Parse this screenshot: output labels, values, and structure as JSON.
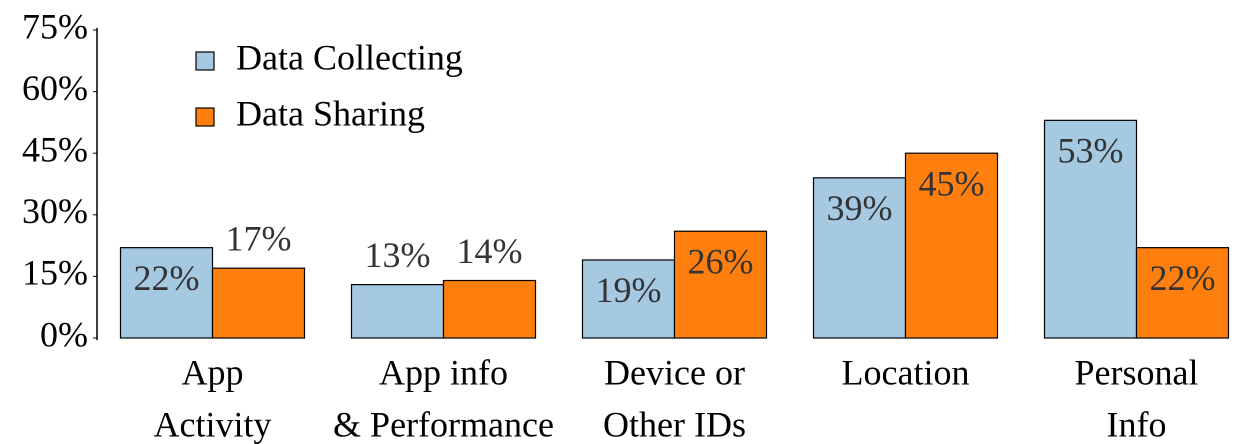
{
  "chart_data": {
    "type": "bar",
    "categories": [
      [
        "App",
        "Activity"
      ],
      [
        "App info",
        "& Performance"
      ],
      [
        "Device or",
        "Other IDs"
      ],
      [
        "Location"
      ],
      [
        "Personal",
        "Info"
      ]
    ],
    "series": [
      {
        "name": "Data Collecting",
        "color": "#a6c9e2",
        "values": [
          22,
          13,
          19,
          39,
          53
        ],
        "value_labels": [
          "22%",
          "13%",
          "19%",
          "39%",
          "53%"
        ]
      },
      {
        "name": "Data Sharing",
        "color": "#ff7f0e",
        "values": [
          17,
          14,
          26,
          45,
          22
        ],
        "value_labels": [
          "17%",
          "14%",
          "26%",
          "45%",
          "22%"
        ]
      }
    ],
    "ylim": [
      0,
      75
    ],
    "yticks": [
      {
        "value": 0,
        "label": "0%"
      },
      {
        "value": 15,
        "label": "15%"
      },
      {
        "value": 30,
        "label": "30%"
      },
      {
        "value": 45,
        "label": "45%"
      },
      {
        "value": 60,
        "label": "60%"
      },
      {
        "value": 75,
        "label": "75%"
      }
    ],
    "legend": "upper left"
  }
}
